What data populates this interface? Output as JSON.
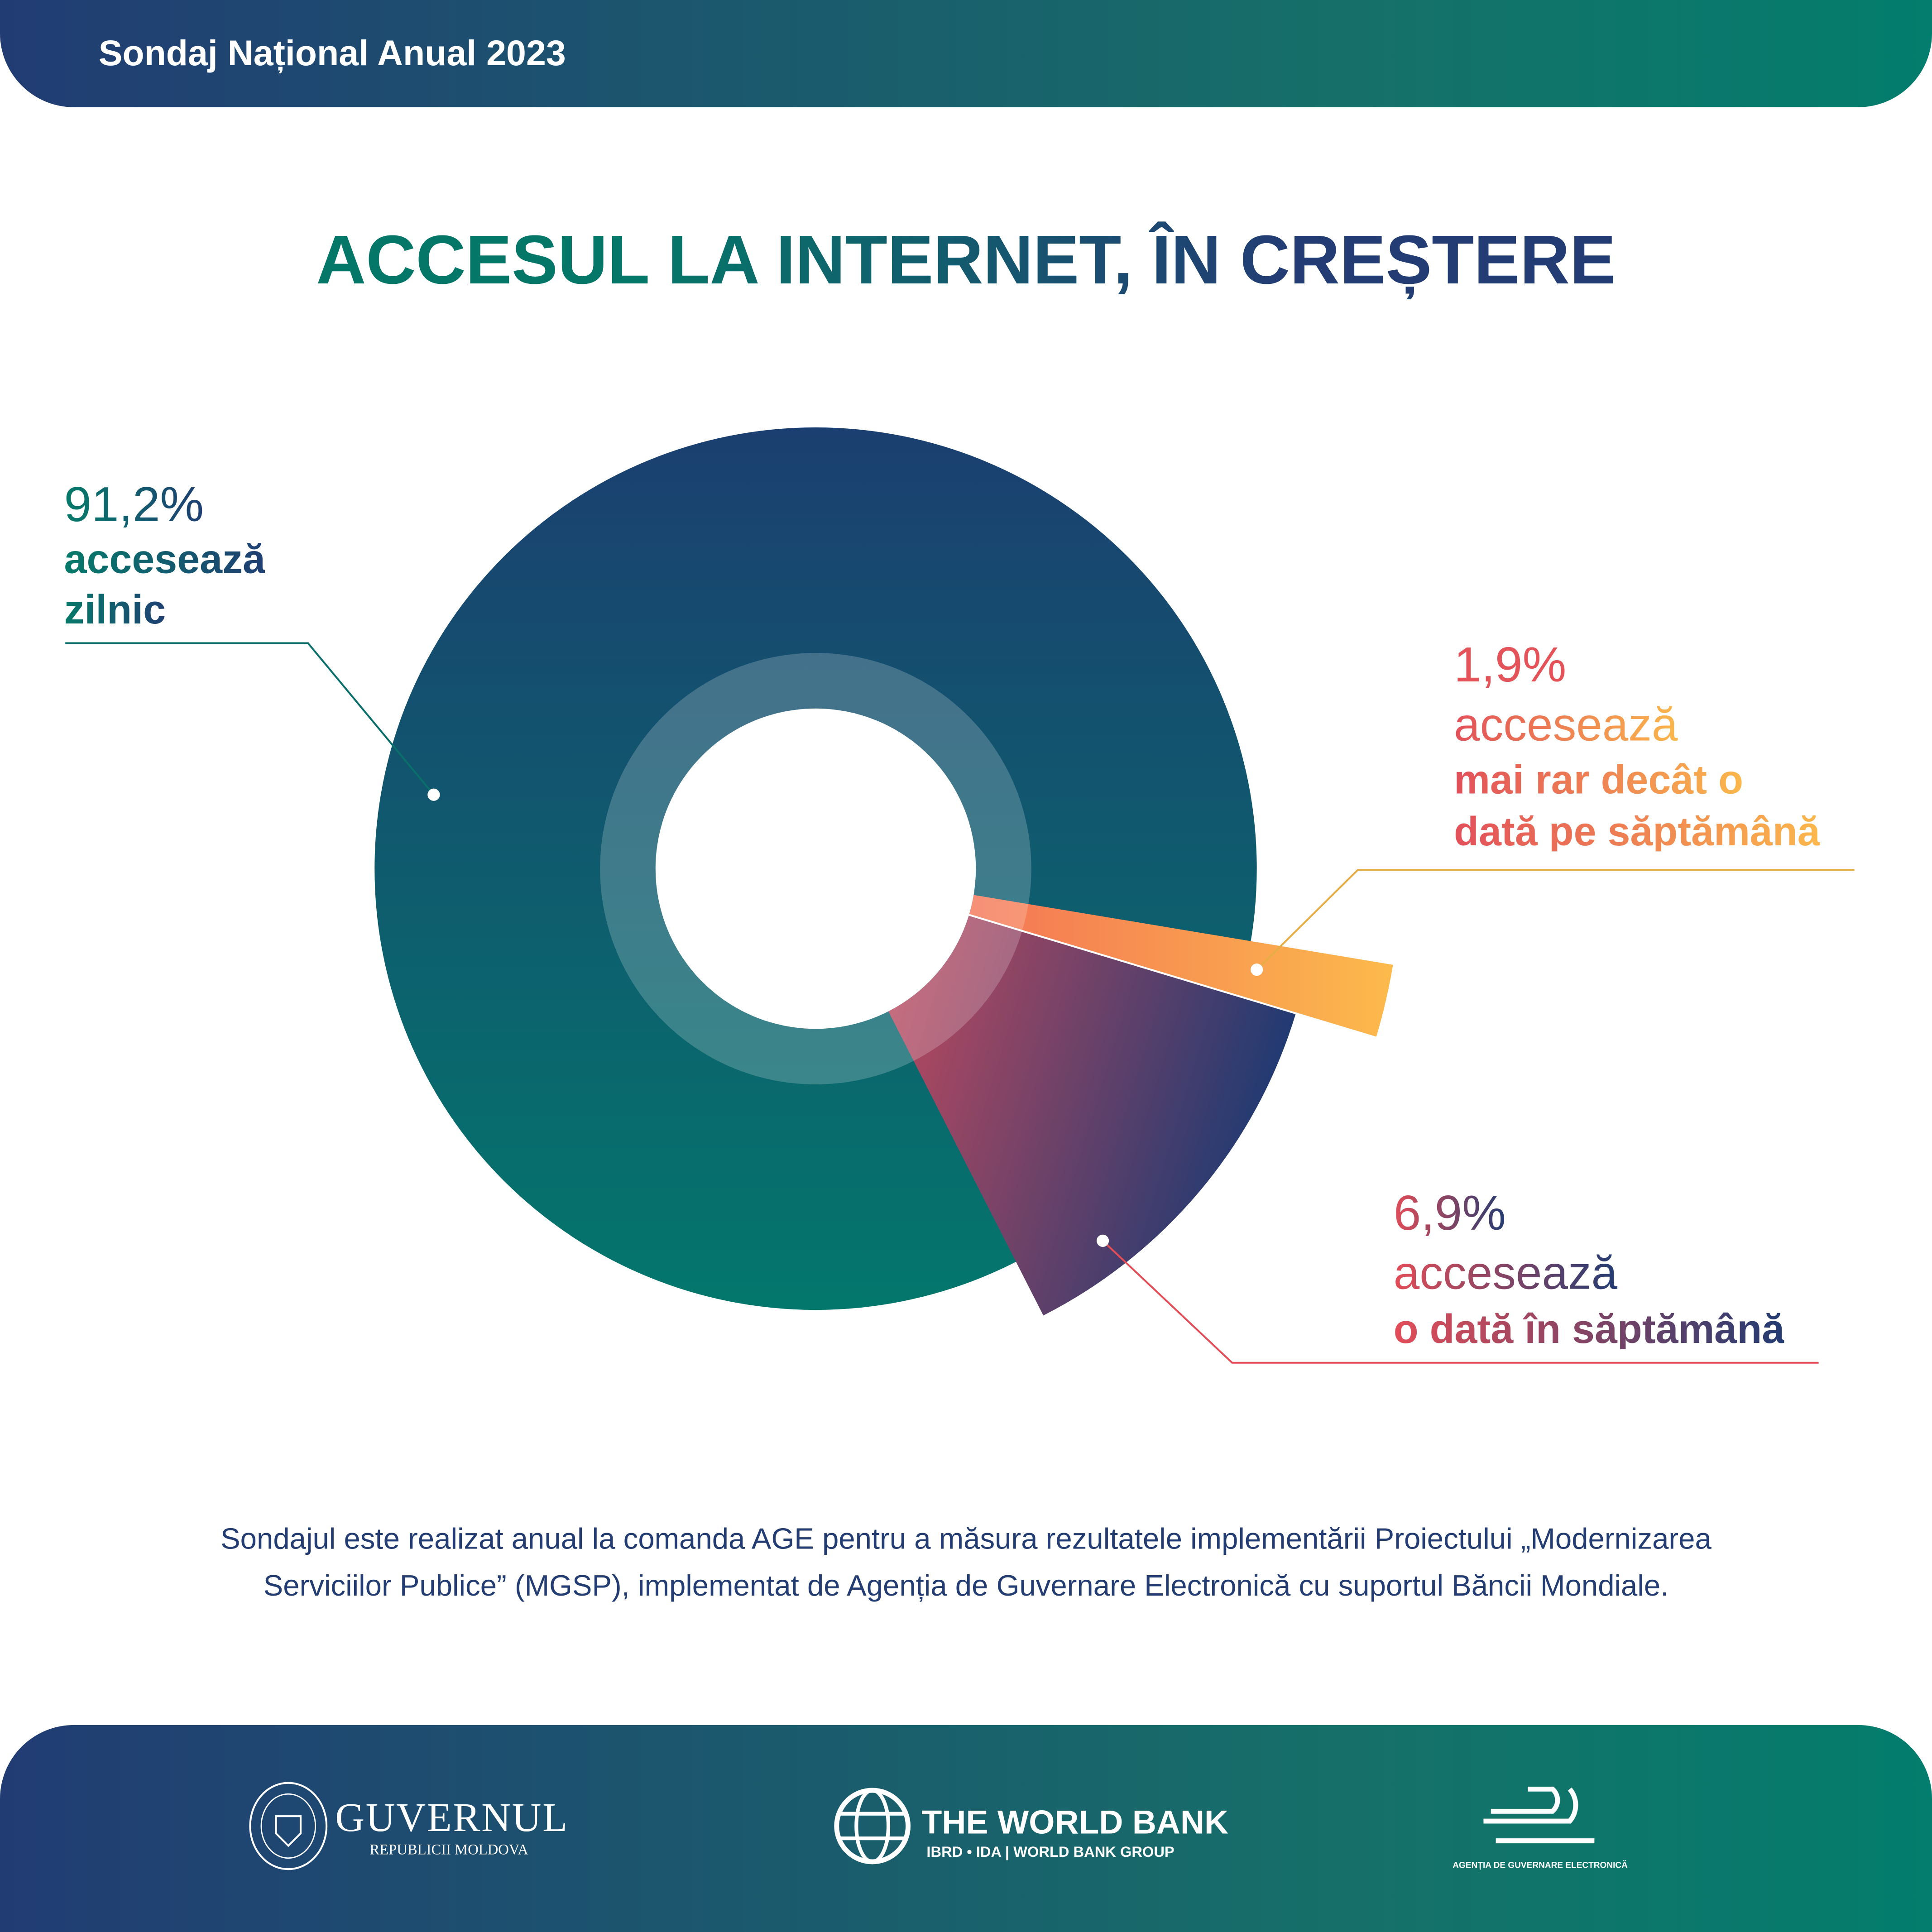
{
  "header": {
    "title": "Sondaj Național Anual 2023"
  },
  "title": "ACCESUL LA INTERNET, ÎN CREȘTERE",
  "chart_data": {
    "type": "pie",
    "title": "ACCESUL LA INTERNET, ÎN CREȘTERE",
    "categories": [
      "accesează zilnic",
      "accesează o dată în săptămână",
      "accesează mai rar decât o dată pe săptămână"
    ],
    "values": [
      91.2,
      6.9,
      1.9
    ],
    "unit": "%",
    "labels": [
      {
        "pct": "91,2%",
        "line1": "accesează",
        "line2": "zilnic"
      },
      {
        "pct": "1,9%",
        "line1": "accesează",
        "line2": "mai rar decât o",
        "line3": "dată pe săptămână"
      },
      {
        "pct": "6,9%",
        "line1": "accesează",
        "line2": "o dată în săptămână"
      }
    ],
    "colors": {
      "daily": "#0b5a6e",
      "weekly": "#5a3f6a",
      "rare": "#f68a55"
    }
  },
  "footnote": {
    "line1": "Sondajul este realizat anual la comanda AGE pentru a măsura rezultatele implementării Proiectului „Modernizarea",
    "line2": "Serviciilor Publice” (MGSP), implementat de Agenția de Guvernare Electronică cu suportul Băncii Mondiale."
  },
  "footer": {
    "gov": {
      "name": "GUVERNUL",
      "sub": "REPUBLICII MOLDOVA",
      "seal": "GUVERNUL REPUBLICII MOLDOVA"
    },
    "wb": {
      "name": "THE WORLD BANK",
      "sub1": "IBRD • IDA",
      "sub2": "WORLD BANK GROUP"
    },
    "age": {
      "name": "AGENȚIA DE GUVERNARE ELECTRONICĂ"
    }
  }
}
